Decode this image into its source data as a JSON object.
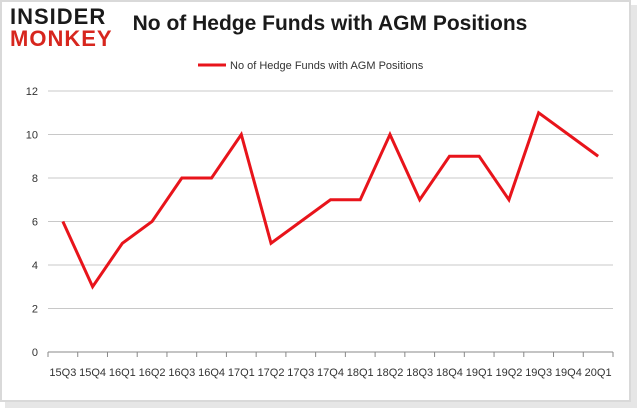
{
  "header": {
    "logo_line1": "INSIDER",
    "logo_line2": "MONKEY",
    "title": "No of Hedge Funds with AGM Positions"
  },
  "colors": {
    "line": "#e8141b",
    "grid": "#c8c8c8",
    "logo_red": "#d7261e"
  },
  "chart_data": {
    "type": "line",
    "title": "No of Hedge Funds with AGM Positions",
    "xlabel": "",
    "ylabel": "",
    "ylim": [
      0,
      12
    ],
    "yticks": [
      0,
      2,
      4,
      6,
      8,
      10,
      12
    ],
    "grid": true,
    "legend_position": "top-center",
    "categories": [
      "15Q3",
      "15Q4",
      "16Q1",
      "16Q2",
      "16Q3",
      "16Q4",
      "17Q1",
      "17Q2",
      "17Q3",
      "17Q4",
      "18Q1",
      "18Q2",
      "18Q3",
      "18Q4",
      "19Q1",
      "19Q2",
      "19Q3",
      "19Q4",
      "20Q1"
    ],
    "series": [
      {
        "name": "No of Hedge Funds with AGM Positions",
        "values": [
          6,
          3,
          5,
          6,
          8,
          8,
          10,
          5,
          6,
          7,
          7,
          10,
          7,
          9,
          9,
          7,
          11,
          10,
          9
        ]
      }
    ]
  }
}
